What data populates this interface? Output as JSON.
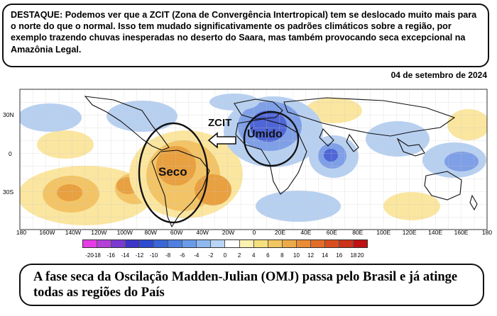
{
  "highlight": {
    "text": "DESTAQUE: Podemos ver que a ZCIT (Zona de Convergência Intertropical) tem se deslocado muito mais para o norte do que o normal. Isso tem mudado significativamente os padrões climáticos sobre a região, por exemplo trazendo chuvas inesperadas no deserto do Saara, mas também provocando seca excepcional na Amazônia Legal."
  },
  "date": "04 de setembro de 2024",
  "map": {
    "annotations": {
      "dry": "Seco",
      "wet": "Úmido",
      "itcz": "ZCIT"
    },
    "lat_labels": [
      "30N",
      "0",
      "30S"
    ],
    "lon_labels": [
      "180",
      "160W",
      "140W",
      "120W",
      "100W",
      "80W",
      "60W",
      "40W",
      "20W",
      "0",
      "20E",
      "40E",
      "60E",
      "80E",
      "100E",
      "120E",
      "140E",
      "160E",
      "180"
    ],
    "colors": {
      "dry_strong": "#e8a040",
      "dry_medium": "#f3c466",
      "dry_light": "#fbe6a0",
      "wet_light": "#b8d0f0",
      "wet_medium": "#7f9fe6",
      "wet_strong": "#4f66d6"
    }
  },
  "colorbar": {
    "labels": [
      "-20",
      "-18",
      "-16",
      "-14",
      "-12",
      "-10",
      "-8",
      "-6",
      "-4",
      "-2",
      "0",
      "2",
      "4",
      "6",
      "8",
      "10",
      "12",
      "14",
      "16",
      "18",
      "20"
    ],
    "colors": [
      "#e63ce6",
      "#b340d9",
      "#7a3bd1",
      "#3d36c8",
      "#2e4bcf",
      "#3a66d8",
      "#4f7fe0",
      "#6a9be8",
      "#90b8f0",
      "#b8d4f7",
      "#ffffff",
      "#fbf1b0",
      "#f6e07e",
      "#f2c660",
      "#eeaa48",
      "#ea8c36",
      "#e36d28",
      "#d94e1f",
      "#cc3318",
      "#c01212"
    ]
  },
  "footer": {
    "text": "A fase seca da Oscilação Madden-Julian (OMJ) passa pelo Brasil e já atinge todas as regiões do País"
  }
}
